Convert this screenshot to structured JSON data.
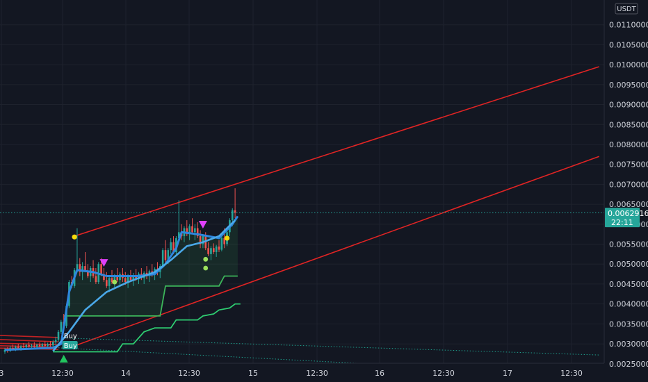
{
  "currency": "USDT",
  "last_price_label": "0.0062916",
  "countdown_label": "22:11",
  "signal_labels": [
    "Buy",
    "Buy"
  ],
  "colors": {
    "background": "#131722",
    "grid": "#1e222d",
    "axis_text": "#d1d4dc",
    "up_candle": "#26a69a",
    "down_candle": "#ef5350",
    "ma_line": "#2e86de",
    "ma_fast": "#4aa8e8",
    "trail_stop": "#3cb55a",
    "lower_trail": "#2ecc71",
    "channel": "#e02424",
    "dotted_channel": "#1e9e8c",
    "price_tag": "#26a69a",
    "sell_marker": "#e040fb",
    "buy_marker": "#22c55e",
    "yellow_dot": "#f5d90a",
    "green_dot": "#9be15d"
  },
  "chart_data": {
    "type": "candlestick",
    "ylim": [
      0.0022,
      0.0115
    ],
    "yticks": [
      "0.0025000",
      "0.0030000",
      "0.0035000",
      "0.0040000",
      "0.0045000",
      "0.0050000",
      "0.0055000",
      "0.0060000",
      "0.0065000",
      "0.0070000",
      "0.0075000",
      "0.0080000",
      "0.0085000",
      "0.0090000",
      "0.0095000",
      "0.0100000",
      "0.0105000",
      "0.0110000"
    ],
    "xticks": [
      "3",
      "12:30",
      "14",
      "12:30",
      "15",
      "12:30",
      "16",
      "12:30",
      "17",
      "12:30"
    ],
    "last_price": 0.0062916,
    "candles": [
      [
        0.0028,
        0.0029,
        0.00275,
        0.00285
      ],
      [
        0.00285,
        0.00292,
        0.00278,
        0.00282
      ],
      [
        0.00282,
        0.00295,
        0.0028,
        0.0029
      ],
      [
        0.0029,
        0.00298,
        0.00284,
        0.00286
      ],
      [
        0.00286,
        0.00296,
        0.00282,
        0.00293
      ],
      [
        0.00293,
        0.003,
        0.00285,
        0.00288
      ],
      [
        0.00288,
        0.00297,
        0.00283,
        0.00294
      ],
      [
        0.00294,
        0.00302,
        0.00288,
        0.00291
      ],
      [
        0.00291,
        0.003,
        0.00286,
        0.00297
      ],
      [
        0.00297,
        0.00305,
        0.0029,
        0.00293
      ],
      [
        0.00293,
        0.003,
        0.00287,
        0.00296
      ],
      [
        0.00296,
        0.00304,
        0.0029,
        0.00292
      ],
      [
        0.00292,
        0.003,
        0.00286,
        0.00298
      ],
      [
        0.00298,
        0.00304,
        0.00291,
        0.00294
      ],
      [
        0.00294,
        0.00302,
        0.00288,
        0.00299
      ],
      [
        0.00299,
        0.00306,
        0.00292,
        0.00295
      ],
      [
        0.00295,
        0.00303,
        0.00289,
        0.003
      ],
      [
        0.003,
        0.00307,
        0.00293,
        0.00296
      ],
      [
        0.00296,
        0.0031,
        0.0029,
        0.00305
      ],
      [
        0.00305,
        0.00318,
        0.00298,
        0.0031
      ],
      [
        0.0031,
        0.00335,
        0.00305,
        0.0033
      ],
      [
        0.0033,
        0.0036,
        0.00325,
        0.00355
      ],
      [
        0.00355,
        0.00375,
        0.0034,
        0.00345
      ],
      [
        0.00345,
        0.004,
        0.0034,
        0.00395
      ],
      [
        0.00395,
        0.0046,
        0.0039,
        0.00455
      ],
      [
        0.00455,
        0.0047,
        0.0044,
        0.00445
      ],
      [
        0.00445,
        0.0049,
        0.0044,
        0.00485
      ],
      [
        0.00485,
        0.0059,
        0.0048,
        0.005
      ],
      [
        0.005,
        0.00515,
        0.0047,
        0.0048
      ],
      [
        0.0048,
        0.00505,
        0.0046,
        0.00495
      ],
      [
        0.00495,
        0.0053,
        0.0048,
        0.0048
      ],
      [
        0.0048,
        0.005,
        0.00465,
        0.0047
      ],
      [
        0.0047,
        0.00495,
        0.00455,
        0.0049
      ],
      [
        0.0049,
        0.0051,
        0.00465,
        0.0047
      ],
      [
        0.0047,
        0.0049,
        0.0045,
        0.00455
      ],
      [
        0.00455,
        0.00505,
        0.0045,
        0.005
      ],
      [
        0.005,
        0.00515,
        0.0047,
        0.00475
      ],
      [
        0.00475,
        0.0049,
        0.00455,
        0.0046
      ],
      [
        0.0046,
        0.0048,
        0.0044,
        0.00445
      ],
      [
        0.00445,
        0.0047,
        0.0043,
        0.00465
      ],
      [
        0.00465,
        0.00485,
        0.0045,
        0.00455
      ],
      [
        0.00455,
        0.00475,
        0.0044,
        0.0047
      ],
      [
        0.0047,
        0.0049,
        0.00455,
        0.0046
      ],
      [
        0.0046,
        0.0048,
        0.00445,
        0.00475
      ],
      [
        0.00475,
        0.0049,
        0.00455,
        0.00465
      ],
      [
        0.00465,
        0.0048,
        0.00448,
        0.00455
      ],
      [
        0.00455,
        0.00475,
        0.0044,
        0.0047
      ],
      [
        0.0047,
        0.00485,
        0.00455,
        0.0046
      ],
      [
        0.0046,
        0.00478,
        0.00445,
        0.00472
      ],
      [
        0.00472,
        0.00488,
        0.00458,
        0.00462
      ],
      [
        0.00462,
        0.0048,
        0.0045,
        0.00476
      ],
      [
        0.00476,
        0.0049,
        0.0046,
        0.00465
      ],
      [
        0.00465,
        0.00482,
        0.0045,
        0.00478
      ],
      [
        0.00478,
        0.00495,
        0.00462,
        0.0047
      ],
      [
        0.0047,
        0.00486,
        0.00455,
        0.00482
      ],
      [
        0.00482,
        0.005,
        0.00468,
        0.00475
      ],
      [
        0.00475,
        0.00492,
        0.0046,
        0.00488
      ],
      [
        0.00488,
        0.00505,
        0.00472,
        0.0048
      ],
      [
        0.0048,
        0.005,
        0.00465,
        0.00495
      ],
      [
        0.00495,
        0.0054,
        0.0049,
        0.00535
      ],
      [
        0.00535,
        0.0056,
        0.005,
        0.0051
      ],
      [
        0.0051,
        0.0054,
        0.005,
        0.00535
      ],
      [
        0.00535,
        0.00565,
        0.00525,
        0.00555
      ],
      [
        0.00555,
        0.0057,
        0.00525,
        0.0053
      ],
      [
        0.0053,
        0.0057,
        0.00525,
        0.00565
      ],
      [
        0.00565,
        0.0066,
        0.00555,
        0.0058
      ],
      [
        0.0058,
        0.006,
        0.0056,
        0.0057
      ],
      [
        0.0057,
        0.00595,
        0.00555,
        0.0059
      ],
      [
        0.0059,
        0.0061,
        0.0057,
        0.00575
      ],
      [
        0.00575,
        0.006,
        0.0056,
        0.00595
      ],
      [
        0.00595,
        0.00615,
        0.00575,
        0.0058
      ],
      [
        0.0058,
        0.006,
        0.0056,
        0.0059
      ],
      [
        0.0059,
        0.00605,
        0.00565,
        0.0057
      ],
      [
        0.0057,
        0.00585,
        0.0054,
        0.0055
      ],
      [
        0.0055,
        0.00575,
        0.0054,
        0.0057
      ],
      [
        0.0057,
        0.0058,
        0.00535,
        0.0054
      ],
      [
        0.0054,
        0.00555,
        0.0052,
        0.00525
      ],
      [
        0.00525,
        0.00545,
        0.0051,
        0.0054
      ],
      [
        0.0054,
        0.00552,
        0.00525,
        0.0053
      ],
      [
        0.0053,
        0.00548,
        0.00518,
        0.00544
      ],
      [
        0.00544,
        0.0056,
        0.0053,
        0.00536
      ],
      [
        0.00536,
        0.0057,
        0.00532,
        0.00565
      ],
      [
        0.00565,
        0.0059,
        0.0054,
        0.0055
      ],
      [
        0.0055,
        0.00585,
        0.00545,
        0.0058
      ],
      [
        0.0058,
        0.00615,
        0.0057,
        0.0061
      ],
      [
        0.0061,
        0.0064,
        0.00595,
        0.00635
      ],
      [
        0.00635,
        0.0069,
        0.00615,
        0.00629
      ]
    ],
    "ma_line": [
      [
        0,
        0.00285
      ],
      [
        18,
        0.0029
      ],
      [
        21,
        0.003
      ],
      [
        24,
        0.0043
      ],
      [
        27,
        0.00485
      ],
      [
        33,
        0.0048
      ],
      [
        38,
        0.0047
      ],
      [
        50,
        0.0047
      ],
      [
        56,
        0.00475
      ],
      [
        60,
        0.005
      ],
      [
        64,
        0.0054
      ],
      [
        66,
        0.0058
      ],
      [
        72,
        0.00575
      ],
      [
        80,
        0.00565
      ],
      [
        85,
        0.006
      ],
      [
        87,
        0.0062
      ]
    ],
    "ma_fast": [
      [
        18,
        0.00282
      ],
      [
        24,
        0.0033
      ],
      [
        30,
        0.00385
      ],
      [
        38,
        0.0043
      ],
      [
        46,
        0.00455
      ],
      [
        56,
        0.0048
      ],
      [
        62,
        0.0051
      ],
      [
        68,
        0.00545
      ],
      [
        74,
        0.00555
      ],
      [
        80,
        0.0057
      ],
      [
        86,
        0.0061
      ]
    ],
    "trail_stop": [
      [
        22,
        0.0037
      ],
      [
        26,
        0.0037
      ],
      [
        58,
        0.0037
      ],
      [
        60,
        0.00445
      ],
      [
        80,
        0.00445
      ],
      [
        82,
        0.0047
      ],
      [
        87,
        0.0047
      ]
    ],
    "lower_trail": [
      [
        18,
        0.0028
      ],
      [
        24,
        0.0028
      ],
      [
        42,
        0.0028
      ],
      [
        44,
        0.003
      ],
      [
        48,
        0.003
      ],
      [
        50,
        0.00315
      ],
      [
        52,
        0.0033
      ],
      [
        56,
        0.0034
      ],
      [
        62,
        0.0034
      ],
      [
        64,
        0.0036
      ],
      [
        72,
        0.0036
      ],
      [
        74,
        0.0037
      ],
      [
        78,
        0.00375
      ],
      [
        80,
        0.00385
      ],
      [
        84,
        0.0039
      ],
      [
        86,
        0.004
      ],
      [
        88,
        0.004
      ]
    ],
    "channel_upper": [
      [
        26,
        0.0057
      ],
      [
        222,
        0.00995
      ]
    ],
    "channel_lower": [
      [
        24,
        0.0029
      ],
      [
        222,
        0.0077
      ]
    ],
    "dotted_upper": [
      [
        20,
        0.00315
      ],
      [
        222,
        0.00272
      ]
    ],
    "dotted_lower": [
      [
        20,
        0.0029
      ],
      [
        222,
        0.0022
      ]
    ],
    "red_cluster": [
      [
        [
          -6,
          0.00312
        ],
        [
          20,
          0.00305
        ]
      ],
      [
        [
          -6,
          0.00302
        ],
        [
          20,
          0.00298
        ]
      ],
      [
        [
          -6,
          0.00296
        ],
        [
          20,
          0.00292
        ]
      ],
      [
        [
          -6,
          0.0029
        ],
        [
          20,
          0.00286
        ]
      ],
      [
        [
          -6,
          0.00322
        ],
        [
          20,
          0.00316
        ]
      ]
    ],
    "sell_markers": [
      [
        37,
        0.00502
      ],
      [
        74,
        0.00598
      ]
    ],
    "buy_markers": [
      [
        22,
        0.00262
      ]
    ],
    "yellow_dots": [
      [
        26,
        0.00568
      ],
      [
        83,
        0.00565
      ]
    ],
    "green_dots": [
      [
        41,
        0.00455
      ],
      [
        75,
        0.00512
      ],
      [
        75,
        0.0049
      ]
    ],
    "buy_labels": [
      [
        22,
        0.00312
      ],
      [
        22,
        0.00288
      ]
    ]
  }
}
